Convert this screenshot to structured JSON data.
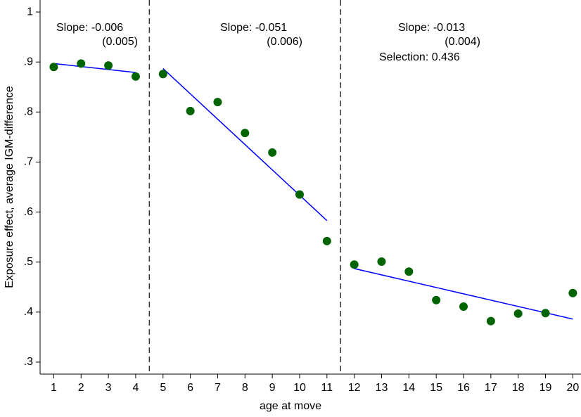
{
  "chart_data": {
    "type": "scatter",
    "x_label": "age at move",
    "y_label": "Exposure effect, average IGM-difference",
    "series": [
      {
        "name": "Exposure effect",
        "color": "#006400",
        "x": [
          1,
          2,
          3,
          4,
          5,
          6,
          7,
          8,
          9,
          10,
          11,
          12,
          13,
          14,
          15,
          16,
          17,
          18,
          19,
          20
        ],
        "values": [
          0.89,
          0.897,
          0.893,
          0.871,
          0.876,
          0.802,
          0.82,
          0.758,
          0.719,
          0.635,
          0.542,
          0.495,
          0.501,
          0.481,
          0.424,
          0.411,
          0.382,
          0.397,
          0.398,
          0.438
        ]
      }
    ],
    "fit_lines": [
      {
        "color": "#0000ff",
        "x": [
          1,
          4
        ],
        "y": [
          0.897,
          0.879
        ]
      },
      {
        "color": "#0000ff",
        "x": [
          5,
          11
        ],
        "y": [
          0.887,
          0.583
        ]
      },
      {
        "color": "#0000ff",
        "x": [
          12,
          20
        ],
        "y": [
          0.487,
          0.386
        ]
      }
    ],
    "vlines": [
      4.5,
      11.5
    ],
    "annotations": [
      [
        "Slope: -0.006",
        "(0.005)"
      ],
      [
        "Slope: -0.051",
        "(0.006)"
      ],
      [
        "Slope: -0.013",
        "(0.004)",
        "Selection: 0.436"
      ]
    ],
    "xlim": [
      0.5,
      20.3
    ],
    "ylim": [
      0.276,
      1.024
    ],
    "xticks": [
      1,
      2,
      3,
      4,
      5,
      6,
      7,
      8,
      9,
      10,
      11,
      12,
      13,
      14,
      15,
      16,
      17,
      18,
      19,
      20
    ],
    "yticks": [
      {
        "value": 0.3,
        "label": ".3"
      },
      {
        "value": 0.4,
        "label": ".4"
      },
      {
        "value": 0.5,
        "label": ".5"
      },
      {
        "value": 0.6,
        "label": ".6"
      },
      {
        "value": 0.7,
        "label": ".7"
      },
      {
        "value": 0.8,
        "label": ".8"
      },
      {
        "value": 0.9,
        "label": ".9"
      },
      1
    ]
  }
}
